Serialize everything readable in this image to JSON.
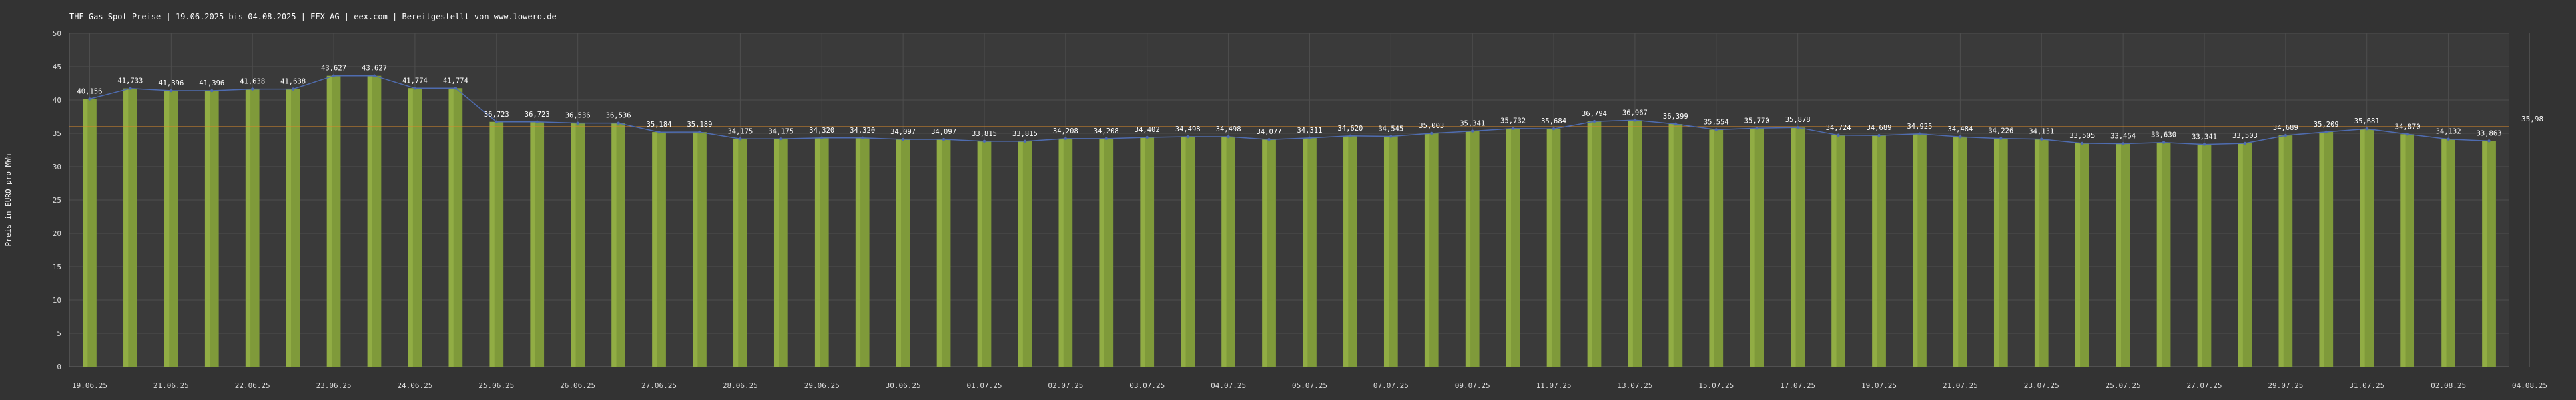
{
  "chart_data": {
    "type": "bar",
    "title": "THE Gas Spot Preise | 19.06.2025 bis 04.08.2025 | EEX AG | eex.com | Bereitgestellt von www.lowero.de",
    "ylabel": "Preis in EURO pro MWh",
    "xlabel": "",
    "ylim": [
      0,
      50
    ],
    "yticks": [
      0,
      5,
      10,
      15,
      20,
      25,
      30,
      35,
      40,
      45,
      50
    ],
    "grid": true,
    "average": 35.98,
    "average_label": "35,98",
    "xtick_labels": [
      "19.06.25",
      "21.06.25",
      "22.06.25",
      "23.06.25",
      "24.06.25",
      "25.06.25",
      "26.06.25",
      "27.06.25",
      "28.06.25",
      "29.06.25",
      "30.06.25",
      "01.07.25",
      "02.07.25",
      "03.07.25",
      "04.07.25",
      "05.07.25",
      "07.07.25",
      "09.07.25",
      "11.07.25",
      "13.07.25",
      "15.07.25",
      "17.07.25",
      "19.07.25",
      "21.07.25",
      "23.07.25",
      "25.07.25",
      "27.07.25",
      "29.07.25",
      "31.07.25",
      "02.08.25",
      "04.08.25"
    ],
    "values": [
      40.156,
      41.733,
      41.396,
      41.396,
      41.638,
      41.638,
      43.627,
      43.627,
      41.774,
      41.774,
      36.723,
      36.723,
      36.536,
      36.536,
      35.184,
      35.189,
      34.175,
      34.175,
      34.32,
      34.32,
      34.097,
      34.097,
      33.815,
      33.815,
      34.208,
      34.208,
      34.402,
      34.498,
      34.498,
      34.077,
      34.311,
      34.62,
      34.545,
      35.003,
      35.341,
      35.732,
      35.684,
      36.794,
      36.967,
      36.399,
      35.554,
      35.77,
      35.878,
      34.724,
      34.689,
      34.925,
      34.484,
      34.226,
      34.131,
      33.505,
      33.454,
      33.63,
      33.341,
      33.503,
      34.689,
      35.209,
      35.681,
      34.87,
      34.132,
      33.863
    ],
    "value_labels": [
      "40,156",
      "41,733",
      "41,396",
      "41,396",
      "41,638",
      "41,638",
      "43,627",
      "43,627",
      "41,774",
      "41,774",
      "36,723",
      "36,723",
      "36,536",
      "36,536",
      "35,184",
      "35,189",
      "34,175",
      "34,175",
      "34,320",
      "34,320",
      "34,097",
      "34,097",
      "33,815",
      "33,815",
      "34,208",
      "34,208",
      "34,402",
      "34,498",
      "34,498",
      "34,077",
      "34,311",
      "34,620",
      "34,545",
      "35,003",
      "35,341",
      "35,732",
      "35,684",
      "36,794",
      "36,967",
      "36,399",
      "35,554",
      "35,770",
      "35,878",
      "34,724",
      "34,689",
      "34,925",
      "34,484",
      "34,226",
      "34,131",
      "33,505",
      "33,454",
      "33,630",
      "33,341",
      "33,503",
      "34,689",
      "35,209",
      "35,681",
      "34,870",
      "34,132",
      "33,863"
    ],
    "colors": {
      "background": "#333333",
      "plot_background": "#3a3a3a",
      "grid": "#4e4e4e",
      "bar": "#7f9a3a",
      "bar_highlight": "#b4d05a",
      "trend_line": "#4f6cb0",
      "average_line": "#d98a2b",
      "text": "#ffffff",
      "axis_text": "#dddddd"
    }
  }
}
